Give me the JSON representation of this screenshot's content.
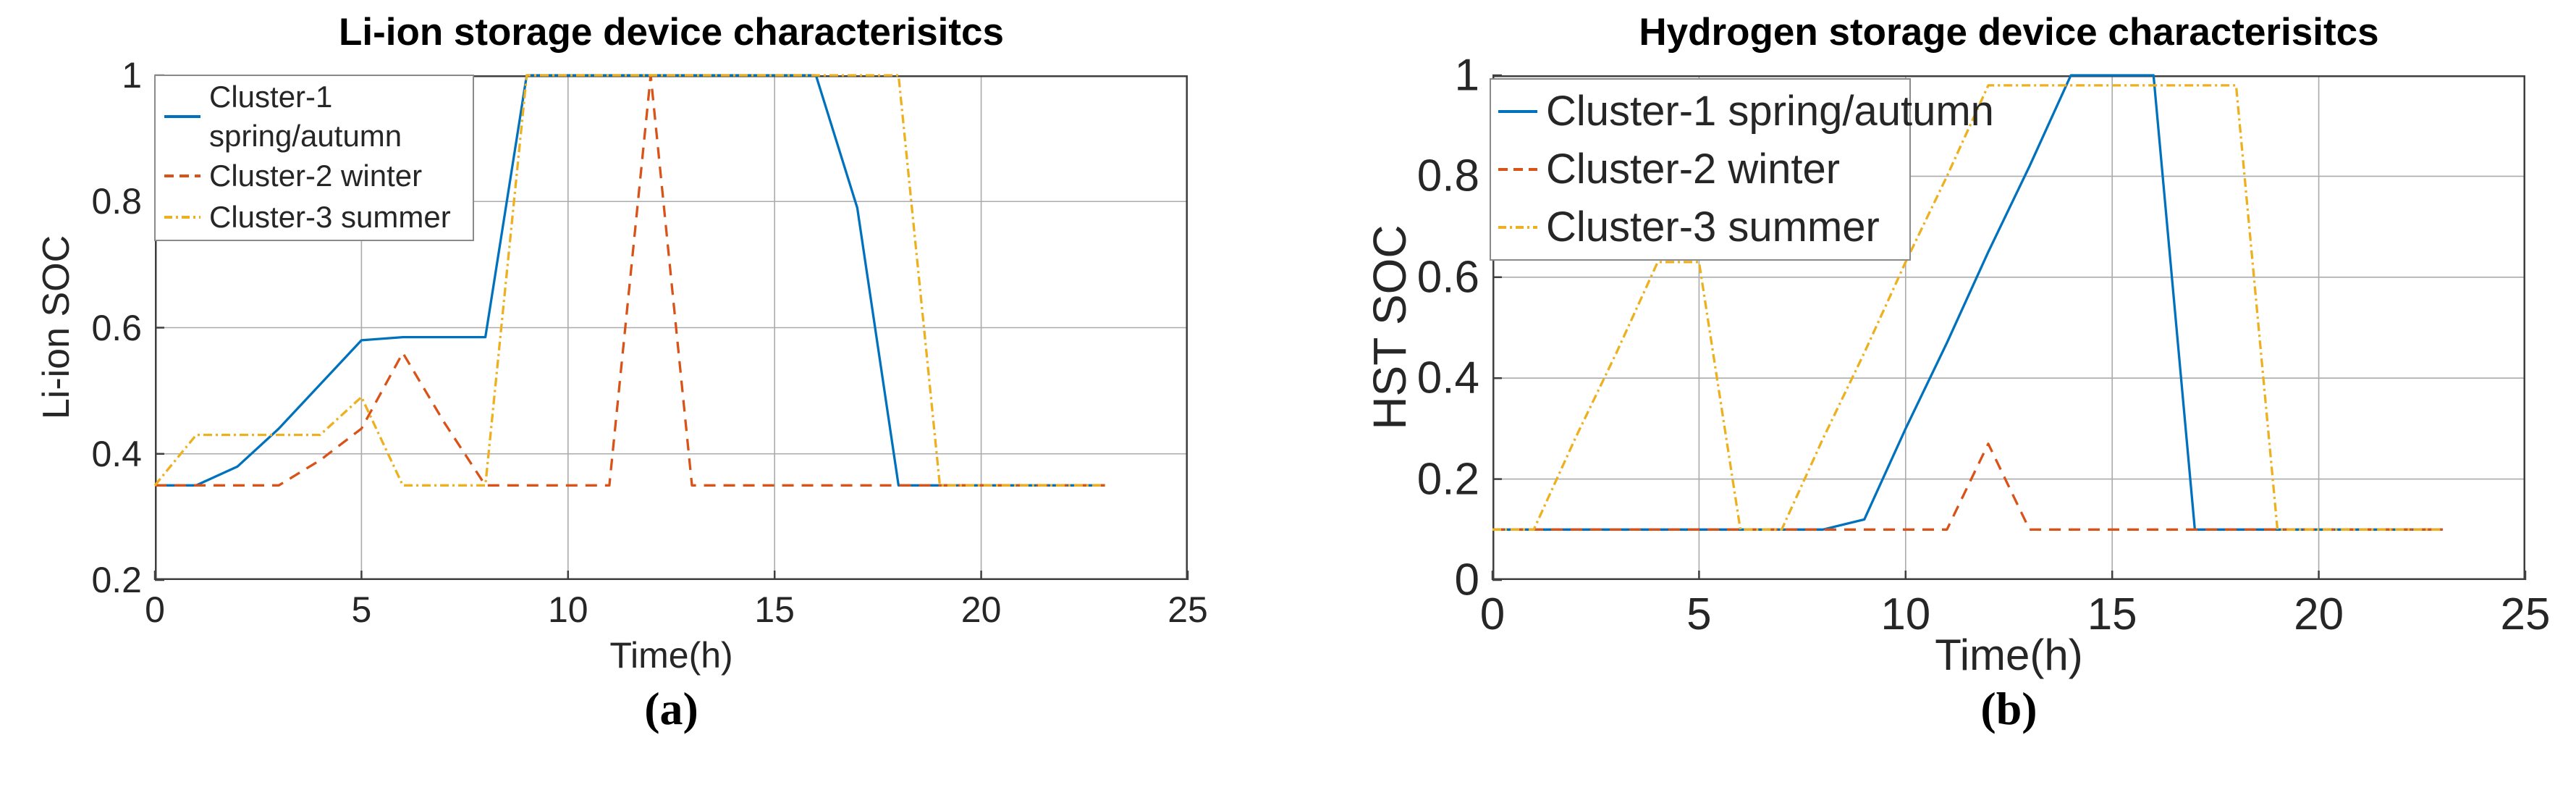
{
  "figure": {
    "panels": [
      {
        "caption": "(a)",
        "title": "Li-ion storage device characterisitcs",
        "xlabel": "Time(h)",
        "ylabel": "Li-ion SOC",
        "legend": {
          "position": "upper-left",
          "items": [
            {
              "label": "Cluster-1 spring/autumn",
              "lines": [
                "Cluster-1",
                "spring/autumn"
              ],
              "color": "#0072BD",
              "linestyle": "solid"
            },
            {
              "label": "Cluster-2 winter",
              "lines": [
                "Cluster-2 winter"
              ],
              "color": "#D95319",
              "linestyle": "dashed"
            },
            {
              "label": "Cluster-3 summer",
              "lines": [
                "Cluster-3 summer"
              ],
              "color": "#EDB120",
              "linestyle": "dashdot"
            }
          ]
        }
      },
      {
        "caption": "(b)",
        "title": "Hydrogen storage device characterisitcs",
        "xlabel": "Time(h)",
        "ylabel": "HST SOC",
        "legend": {
          "position": "upper-left",
          "items": [
            {
              "label": "Cluster-1 spring/autumn",
              "color": "#0072BD",
              "linestyle": "solid"
            },
            {
              "label": "Cluster-2 winter",
              "color": "#D95319",
              "linestyle": "dashed"
            },
            {
              "label": "Cluster-3 summer",
              "color": "#EDB120",
              "linestyle": "dashdot"
            }
          ]
        }
      }
    ]
  },
  "chart_data": [
    {
      "type": "line",
      "title": "Li-ion storage device characterisitcs",
      "xlabel": "Time(h)",
      "ylabel": "Li-ion SOC",
      "xlim": [
        0,
        25
      ],
      "ylim": [
        0.2,
        1
      ],
      "xticks": [
        0,
        5,
        10,
        15,
        20,
        25
      ],
      "xtick_labels": [
        "0",
        "5",
        "10",
        "15",
        "20",
        "25"
      ],
      "yticks": [
        0.2,
        0.4,
        0.6,
        0.8,
        1
      ],
      "ytick_labels": [
        "0.2",
        "0.4",
        "0.6",
        "0.8",
        "1"
      ],
      "grid": true,
      "legend_position": "upper-left",
      "x": [
        0,
        1,
        2,
        3,
        4,
        5,
        6,
        7,
        8,
        9,
        10,
        11,
        12,
        13,
        14,
        15,
        16,
        17,
        18,
        19,
        20,
        21,
        22,
        23
      ],
      "series": [
        {
          "name": "Cluster-1 spring/autumn",
          "color": "#0072BD",
          "linestyle": "solid",
          "values": [
            0.35,
            0.35,
            0.38,
            0.44,
            0.51,
            0.58,
            0.585,
            0.585,
            0.585,
            1,
            1,
            1,
            1,
            1,
            1,
            1,
            1,
            0.79,
            0.35,
            0.35,
            0.35,
            0.35,
            0.35,
            0.35
          ]
        },
        {
          "name": "Cluster-2 winter",
          "color": "#D95319",
          "linestyle": "dashed",
          "values": [
            0.35,
            0.35,
            0.35,
            0.35,
            0.39,
            0.44,
            0.56,
            0.45,
            0.35,
            0.35,
            0.35,
            0.35,
            1,
            0.35,
            0.35,
            0.35,
            0.35,
            0.35,
            0.35,
            0.35,
            0.35,
            0.35,
            0.35,
            0.35
          ]
        },
        {
          "name": "Cluster-3 summer",
          "color": "#EDB120",
          "linestyle": "dashdot",
          "values": [
            0.35,
            0.43,
            0.43,
            0.43,
            0.43,
            0.49,
            0.35,
            0.35,
            0.35,
            1,
            1,
            1,
            1,
            1,
            1,
            1,
            1,
            1,
            1,
            0.35,
            0.35,
            0.35,
            0.35,
            0.35
          ]
        }
      ]
    },
    {
      "type": "line",
      "title": "Hydrogen storage device characterisitcs",
      "xlabel": "Time(h)",
      "ylabel": "HST SOC",
      "xlim": [
        0,
        25
      ],
      "ylim": [
        0,
        1
      ],
      "xticks": [
        0,
        5,
        10,
        15,
        20,
        25
      ],
      "xtick_labels": [
        "0",
        "5",
        "10",
        "15",
        "20",
        "25"
      ],
      "yticks": [
        0,
        0.2,
        0.4,
        0.6,
        0.8,
        1
      ],
      "ytick_labels": [
        "0",
        "0.2",
        "0.4",
        "0.6",
        "0.8",
        "1"
      ],
      "grid": true,
      "legend_position": "upper-left",
      "x": [
        0,
        1,
        2,
        3,
        4,
        5,
        6,
        7,
        8,
        9,
        10,
        11,
        12,
        13,
        14,
        15,
        16,
        17,
        18,
        19,
        20,
        21,
        22,
        23
      ],
      "series": [
        {
          "name": "Cluster-1 spring/autumn",
          "color": "#0072BD",
          "linestyle": "solid",
          "values": [
            0.1,
            0.1,
            0.1,
            0.1,
            0.1,
            0.1,
            0.1,
            0.1,
            0.1,
            0.12,
            0.3,
            0.47,
            0.65,
            0.82,
            1,
            1,
            1,
            0.1,
            0.1,
            0.1,
            0.1,
            0.1,
            0.1,
            0.1
          ]
        },
        {
          "name": "Cluster-2 winter",
          "color": "#D95319",
          "linestyle": "dashed",
          "values": [
            0.1,
            0.1,
            0.1,
            0.1,
            0.1,
            0.1,
            0.1,
            0.1,
            0.1,
            0.1,
            0.1,
            0.1,
            0.27,
            0.1,
            0.1,
            0.1,
            0.1,
            0.1,
            0.1,
            0.1,
            0.1,
            0.1,
            0.1,
            0.1
          ]
        },
        {
          "name": "Cluster-3 summer",
          "color": "#EDB120",
          "linestyle": "dashdot",
          "values": [
            0.1,
            0.1,
            0.28,
            0.45,
            0.63,
            0.63,
            0.1,
            0.1,
            0.28,
            0.45,
            0.63,
            0.8,
            0.98,
            0.98,
            0.98,
            0.98,
            0.98,
            0.98,
            0.98,
            0.1,
            0.1,
            0.1,
            0.1,
            0.1
          ]
        }
      ]
    }
  ]
}
